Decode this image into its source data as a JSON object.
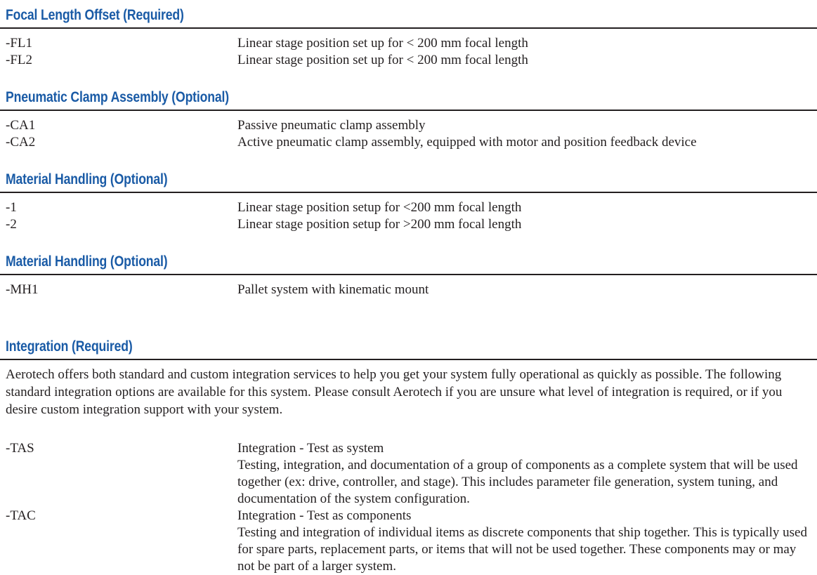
{
  "theme": {
    "heading_color": "#1a5ba6",
    "rule_color": "#231f20",
    "text_color": "#231f20",
    "background": "#ffffff"
  },
  "sections": [
    {
      "title": "Focal Length Offset (Required)",
      "rows": [
        {
          "code": "-FL1",
          "lines": [
            "Linear stage position set up for < 200 mm focal length"
          ]
        },
        {
          "code": "-FL2",
          "lines": [
            "Linear stage position set up for < 200 mm focal length"
          ]
        }
      ]
    },
    {
      "title": "Pneumatic Clamp Assembly (Optional)",
      "rows": [
        {
          "code": "-CA1",
          "lines": [
            "Passive pneumatic clamp assembly"
          ]
        },
        {
          "code": "-CA2",
          "lines": [
            "Active pneumatic clamp assembly, equipped with motor and position feedback device"
          ]
        }
      ]
    },
    {
      "title": "Material Handling (Optional)",
      "rows": [
        {
          "code": "-1",
          "lines": [
            "Linear stage position setup for <200 mm focal length"
          ]
        },
        {
          "code": "-2",
          "lines": [
            "Linear stage position setup for >200 mm focal length"
          ]
        }
      ]
    },
    {
      "title": "Material Handling (Optional)",
      "rows": [
        {
          "code": "-MH1",
          "lines": [
            "Pallet system with kinematic mount"
          ]
        }
      ]
    },
    {
      "title": "Integration (Required)",
      "intro": "Aerotech offers both standard and custom integration services to help you get your system fully operational as quickly as possible. The following standard integration options are available for this system. Please consult Aerotech if you are unsure what level of integration is required, or if you desire custom integration support with your system.",
      "rows": [
        {
          "code": "-TAS",
          "lines": [
            "Integration - Test as system",
            "Testing, integration, and documentation of a group of components as a complete system that will be used together (ex: drive, controller, and stage). This includes parameter file generation, system tuning, and documentation of the system configuration."
          ]
        },
        {
          "code": "-TAC",
          "lines": [
            "Integration - Test as components",
            "Testing and integration of individual items as discrete components that ship together. This is typically used for spare parts, replacement parts, or items that will not be used together. These components may or may not be part of a larger system."
          ]
        }
      ]
    }
  ]
}
